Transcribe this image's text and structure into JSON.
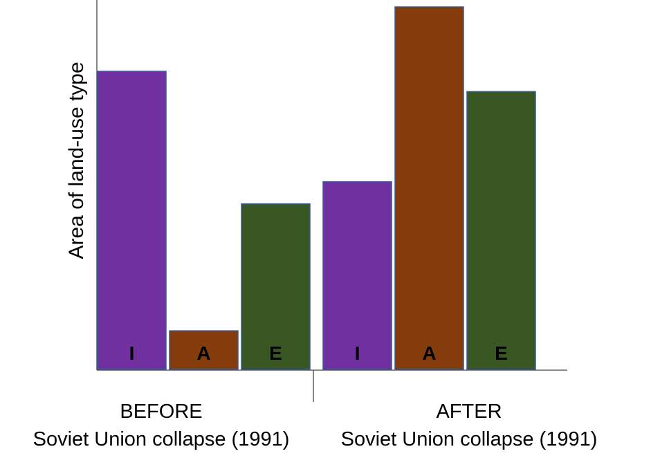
{
  "chart_data": {
    "type": "bar",
    "ylabel": "Area of land-use type",
    "yaxis_ticks": false,
    "grid": false,
    "legend": "none",
    "groups": [
      {
        "line1": "BEFORE",
        "line2": "Soviet Union collapse (1991)",
        "bars": [
          {
            "label": "I",
            "value": 0.81,
            "color": "#7030a0"
          },
          {
            "label": "A",
            "value": 0.105,
            "color": "#843c0c"
          },
          {
            "label": "E",
            "value": 0.45,
            "color": "#385723"
          }
        ]
      },
      {
        "line1": "AFTER",
        "line2": "Soviet Union collapse (1991)",
        "bars": [
          {
            "label": "I",
            "value": 0.51,
            "color": "#7030a0"
          },
          {
            "label": "A",
            "value": 0.985,
            "color": "#843c0c"
          },
          {
            "label": "E",
            "value": 0.755,
            "color": "#385723"
          }
        ]
      }
    ]
  }
}
